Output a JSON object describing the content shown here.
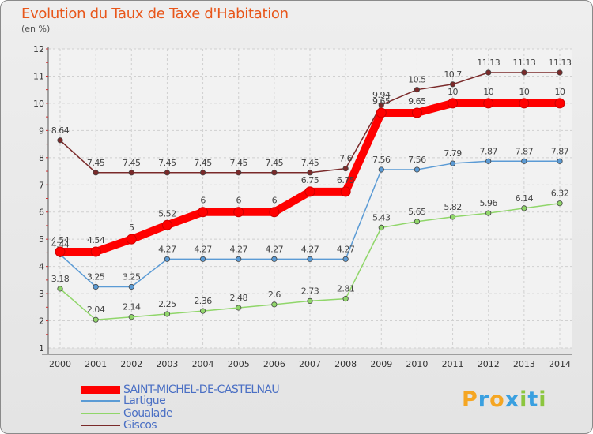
{
  "title": "Evolution du Taux de Taxe d'Habitation",
  "subtitle": "(en %)",
  "chart_data": {
    "type": "line",
    "title": "Evolution du Taux de Taxe d'Habitation",
    "ylabel": "(en %)",
    "xlabel": "",
    "ylim": [
      1,
      12
    ],
    "yticks": [
      "1",
      "2",
      "3",
      "4",
      "5",
      "6",
      "7",
      "8",
      "9",
      "10",
      "11",
      "12"
    ],
    "grid": true,
    "x": [
      "2000",
      "2001",
      "2002",
      "2003",
      "2004",
      "2005",
      "2006",
      "2007",
      "2008",
      "2009",
      "2010",
      "2011",
      "2012",
      "2013",
      "2014"
    ],
    "series": [
      {
        "name": "SAINT-MICHEL-DE-CASTELNAU",
        "color": "#ff0000",
        "style": "thick",
        "values": [
          4.54,
          4.54,
          5,
          5.52,
          6,
          6,
          6,
          6.75,
          6.75,
          9.65,
          9.65,
          10,
          10,
          10,
          10
        ],
        "labels": [
          "4.54",
          "4.54",
          "5",
          "5.52",
          "6",
          "6",
          "6",
          "6.75",
          "6.75",
          "9.65",
          "9.65",
          "10",
          "10",
          "10",
          "10"
        ]
      },
      {
        "name": "Lartigue",
        "color": "#5b9bd5",
        "values": [
          4.44,
          3.25,
          3.25,
          4.27,
          4.27,
          4.27,
          4.27,
          4.27,
          4.27,
          7.56,
          7.56,
          7.79,
          7.87,
          7.87,
          7.87
        ],
        "labels": [
          "4.44",
          "3.25",
          "3.25",
          "4.27",
          "4.27",
          "4.27",
          "4.27",
          "4.27",
          "4.27",
          "7.56",
          "7.56",
          "7.79",
          "7.87",
          "7.87",
          "7.87"
        ]
      },
      {
        "name": "Goualade",
        "color": "#90d66a",
        "values": [
          3.18,
          2.04,
          2.14,
          2.25,
          2.36,
          2.48,
          2.6,
          2.73,
          2.81,
          5.43,
          5.65,
          5.82,
          5.96,
          6.14,
          6.32
        ],
        "labels": [
          "3.18",
          "2.04",
          "2.14",
          "2.25",
          "2.36",
          "2.48",
          "2.6",
          "2.73",
          "2.81",
          "5.43",
          "5.65",
          "5.82",
          "5.96",
          "6.14",
          "6.32"
        ]
      },
      {
        "name": "Giscos",
        "color": "#7a2a2a",
        "values": [
          8.64,
          7.45,
          7.45,
          7.45,
          7.45,
          7.45,
          7.45,
          7.45,
          7.6,
          9.94,
          10.5,
          10.7,
          11.13,
          11.13,
          11.13
        ],
        "labels": [
          "8.64",
          "7.45",
          "7.45",
          "7.45",
          "7.45",
          "7.45",
          "7.45",
          "7.45",
          "7.6",
          "9.94",
          "10.5",
          "10.7",
          "11.13",
          "11.13",
          "11.13"
        ]
      }
    ]
  },
  "legend": [
    {
      "label": "SAINT-MICHEL-DE-CASTELNAU",
      "color": "#ff0000"
    },
    {
      "label": "Lartigue",
      "color": "#5b9bd5"
    },
    {
      "label": "Goualade",
      "color": "#90d66a"
    },
    {
      "label": "Giscos",
      "color": "#7a2a2a"
    }
  ],
  "logo": {
    "letters": [
      "P",
      "r",
      "o",
      "x",
      "i",
      "t",
      "i"
    ],
    "colors": [
      "#f5a623",
      "#3aa0e0",
      "#f5a623",
      "#3aa0e0",
      "#8cc63f",
      "#3aa0e0",
      "#8cc63f"
    ]
  }
}
